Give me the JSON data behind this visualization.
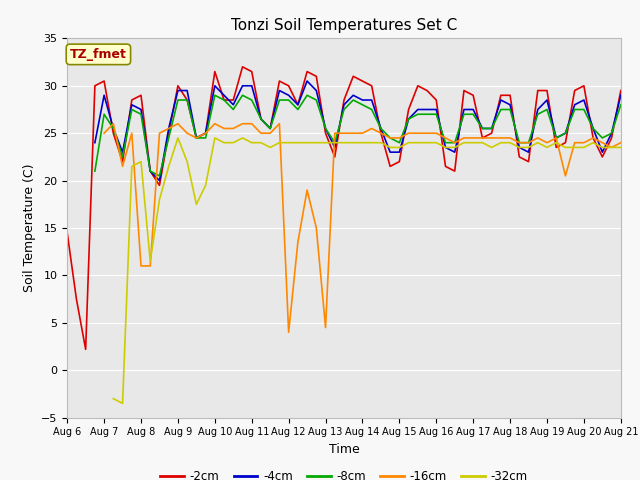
{
  "title": "Tonzi Soil Temperatures Set C",
  "xlabel": "Time",
  "ylabel": "Soil Temperature (C)",
  "ylim": [
    -5,
    35
  ],
  "xlim": [
    0,
    15
  ],
  "plot_bg_color": "#e8e8e8",
  "fig_bg_color": "#f8f8f8",
  "grid_color": "#ffffff",
  "annotation_text": "TZ_fmet",
  "annotation_color": "#aa0000",
  "annotation_bg": "#ffffcc",
  "annotation_border": "#888800",
  "x_tick_labels": [
    "Aug 6",
    "Aug 7",
    "Aug 8",
    "Aug 9",
    "Aug 10",
    "Aug 11",
    "Aug 12",
    "Aug 13",
    "Aug 14",
    "Aug 15",
    "Aug 16",
    "Aug 17",
    "Aug 18",
    "Aug 19",
    "Aug 20",
    "Aug 21"
  ],
  "legend_entries": [
    "-2cm",
    "-4cm",
    "-8cm",
    "-16cm",
    "-32cm"
  ],
  "legend_colors": [
    "#dd0000",
    "#0000cc",
    "#00aa00",
    "#ff8800",
    "#cccc00"
  ],
  "series": {
    "cm2": {
      "color": "#dd0000",
      "x": [
        0,
        0.25,
        0.5,
        0.75,
        1.0,
        1.25,
        1.5,
        1.75,
        2.0,
        2.25,
        2.5,
        2.75,
        3.0,
        3.25,
        3.5,
        3.75,
        4.0,
        4.25,
        4.5,
        4.75,
        5.0,
        5.25,
        5.5,
        5.75,
        6.0,
        6.25,
        6.5,
        6.75,
        7.0,
        7.25,
        7.5,
        7.75,
        8.0,
        8.25,
        8.5,
        8.75,
        9.0,
        9.25,
        9.5,
        9.75,
        10.0,
        10.25,
        10.5,
        10.75,
        11.0,
        11.25,
        11.5,
        11.75,
        12.0,
        12.25,
        12.5,
        12.75,
        13.0,
        13.25,
        13.5,
        13.75,
        14.0,
        14.25,
        14.5,
        14.75,
        15.0
      ],
      "y": [
        14.5,
        7.5,
        2.2,
        30.0,
        30.5,
        25.0,
        22.0,
        28.5,
        29.0,
        21.0,
        19.5,
        25.0,
        30.0,
        28.5,
        24.5,
        25.0,
        31.5,
        28.5,
        28.5,
        32.0,
        31.5,
        26.5,
        25.5,
        30.5,
        30.0,
        28.0,
        31.5,
        31.0,
        25.0,
        22.5,
        28.5,
        31.0,
        30.5,
        30.0,
        25.0,
        21.5,
        22.0,
        27.5,
        30.0,
        29.5,
        28.5,
        21.5,
        21.0,
        29.5,
        29.0,
        24.5,
        25.0,
        29.0,
        29.0,
        22.5,
        22.0,
        29.5,
        29.5,
        23.5,
        24.0,
        29.5,
        30.0,
        24.5,
        22.5,
        24.5,
        29.5
      ]
    },
    "cm4": {
      "color": "#0000cc",
      "x": [
        0,
        0.25,
        0.5,
        0.75,
        1.0,
        1.25,
        1.5,
        1.75,
        2.0,
        2.25,
        2.5,
        2.75,
        3.0,
        3.25,
        3.5,
        3.75,
        4.0,
        4.25,
        4.5,
        4.75,
        5.0,
        5.25,
        5.5,
        5.75,
        6.0,
        6.25,
        6.5,
        6.75,
        7.0,
        7.25,
        7.5,
        7.75,
        8.0,
        8.25,
        8.5,
        8.75,
        9.0,
        9.25,
        9.5,
        9.75,
        10.0,
        10.25,
        10.5,
        10.75,
        11.0,
        11.25,
        11.5,
        11.75,
        12.0,
        12.25,
        12.5,
        12.75,
        13.0,
        13.25,
        13.5,
        13.75,
        14.0,
        14.25,
        14.5,
        14.75,
        15.0
      ],
      "y": [
        null,
        null,
        null,
        24.0,
        29.0,
        25.5,
        23.0,
        28.0,
        27.5,
        21.0,
        20.0,
        25.5,
        29.5,
        29.5,
        24.5,
        25.0,
        30.0,
        29.0,
        28.0,
        30.0,
        30.0,
        26.5,
        25.5,
        29.5,
        29.0,
        28.0,
        30.5,
        29.5,
        25.5,
        23.5,
        28.0,
        29.0,
        28.5,
        28.5,
        25.5,
        23.0,
        23.0,
        26.5,
        27.5,
        27.5,
        27.5,
        23.5,
        23.0,
        27.5,
        27.5,
        25.5,
        25.5,
        28.5,
        28.0,
        23.5,
        23.0,
        27.5,
        28.5,
        24.5,
        25.0,
        28.0,
        28.5,
        25.5,
        23.0,
        25.0,
        29.0
      ]
    },
    "cm8": {
      "color": "#00aa00",
      "x": [
        0,
        0.25,
        0.5,
        0.75,
        1.0,
        1.25,
        1.5,
        1.75,
        2.0,
        2.25,
        2.5,
        2.75,
        3.0,
        3.25,
        3.5,
        3.75,
        4.0,
        4.25,
        4.5,
        4.75,
        5.0,
        5.25,
        5.5,
        5.75,
        6.0,
        6.25,
        6.5,
        6.75,
        7.0,
        7.25,
        7.5,
        7.75,
        8.0,
        8.25,
        8.5,
        8.75,
        9.0,
        9.25,
        9.5,
        9.75,
        10.0,
        10.25,
        10.5,
        10.75,
        11.0,
        11.25,
        11.5,
        11.75,
        12.0,
        12.25,
        12.5,
        12.75,
        13.0,
        13.25,
        13.5,
        13.75,
        14.0,
        14.25,
        14.5,
        14.75,
        15.0
      ],
      "y": [
        null,
        null,
        null,
        21.0,
        27.0,
        25.5,
        22.5,
        27.5,
        27.0,
        21.0,
        20.5,
        24.5,
        28.5,
        28.5,
        24.5,
        24.5,
        29.0,
        28.5,
        27.5,
        29.0,
        28.5,
        26.5,
        25.5,
        28.5,
        28.5,
        27.5,
        29.0,
        28.5,
        25.5,
        24.0,
        27.5,
        28.5,
        28.0,
        27.5,
        25.5,
        24.5,
        24.0,
        26.5,
        27.0,
        27.0,
        27.0,
        24.0,
        24.0,
        27.0,
        27.0,
        25.5,
        25.5,
        27.5,
        27.5,
        24.0,
        24.0,
        27.0,
        27.5,
        24.5,
        25.0,
        27.5,
        27.5,
        25.5,
        24.5,
        25.0,
        28.0
      ]
    },
    "cm16": {
      "color": "#ff8800",
      "x": [
        0,
        0.25,
        0.5,
        0.75,
        1.0,
        1.25,
        1.5,
        1.75,
        2.0,
        2.25,
        2.5,
        2.75,
        3.0,
        3.25,
        3.5,
        3.75,
        4.0,
        4.25,
        4.5,
        4.75,
        5.0,
        5.25,
        5.5,
        5.75,
        6.0,
        6.25,
        6.5,
        6.75,
        7.0,
        7.25,
        7.5,
        7.75,
        8.0,
        8.25,
        8.5,
        8.75,
        9.0,
        9.25,
        9.5,
        9.75,
        10.0,
        10.25,
        10.5,
        10.75,
        11.0,
        11.25,
        11.5,
        11.75,
        12.0,
        12.25,
        12.5,
        12.75,
        13.0,
        13.25,
        13.5,
        13.75,
        14.0,
        14.25,
        14.5,
        14.75,
        15.0
      ],
      "y": [
        null,
        null,
        null,
        null,
        25.0,
        26.0,
        21.5,
        25.0,
        11.0,
        11.0,
        25.0,
        25.5,
        26.0,
        25.0,
        24.5,
        25.0,
        26.0,
        25.5,
        25.5,
        26.0,
        26.0,
        25.0,
        25.0,
        26.0,
        4.0,
        13.5,
        19.0,
        15.0,
        4.5,
        25.0,
        25.0,
        25.0,
        25.0,
        25.5,
        25.0,
        24.5,
        24.5,
        25.0,
        25.0,
        25.0,
        25.0,
        24.5,
        24.0,
        24.5,
        24.5,
        24.5,
        24.5,
        24.5,
        24.5,
        24.0,
        24.0,
        24.5,
        24.0,
        24.5,
        20.5,
        24.0,
        24.0,
        24.5,
        24.0,
        23.5,
        24.0
      ]
    },
    "cm32": {
      "color": "#cccc00",
      "x": [
        0,
        0.25,
        0.5,
        0.75,
        1.0,
        1.25,
        1.5,
        1.75,
        2.0,
        2.25,
        2.5,
        2.75,
        3.0,
        3.25,
        3.5,
        3.75,
        4.0,
        4.25,
        4.5,
        4.75,
        5.0,
        5.25,
        5.5,
        5.75,
        6.0,
        6.25,
        6.5,
        6.75,
        7.0,
        7.25,
        7.5,
        7.75,
        8.0,
        8.25,
        8.5,
        8.75,
        9.0,
        9.25,
        9.5,
        9.75,
        10.0,
        10.25,
        10.5,
        10.75,
        11.0,
        11.25,
        11.5,
        11.75,
        12.0,
        12.25,
        12.5,
        12.75,
        13.0,
        13.25,
        13.5,
        13.75,
        14.0,
        14.25,
        14.5,
        14.75,
        15.0
      ],
      "y": [
        null,
        null,
        null,
        null,
        null,
        -3.0,
        -3.5,
        21.5,
        22.0,
        11.5,
        18.0,
        21.5,
        24.5,
        22.0,
        17.5,
        19.5,
        24.5,
        24.0,
        24.0,
        24.5,
        24.0,
        24.0,
        23.5,
        24.0,
        24.0,
        24.0,
        24.0,
        24.0,
        24.0,
        24.0,
        24.0,
        24.0,
        24.0,
        24.0,
        24.0,
        23.5,
        23.5,
        24.0,
        24.0,
        24.0,
        24.0,
        23.5,
        23.5,
        24.0,
        24.0,
        24.0,
        23.5,
        24.0,
        24.0,
        23.5,
        23.5,
        24.0,
        23.5,
        24.0,
        23.5,
        23.5,
        23.5,
        24.0,
        23.5,
        23.5,
        23.5
      ]
    }
  }
}
